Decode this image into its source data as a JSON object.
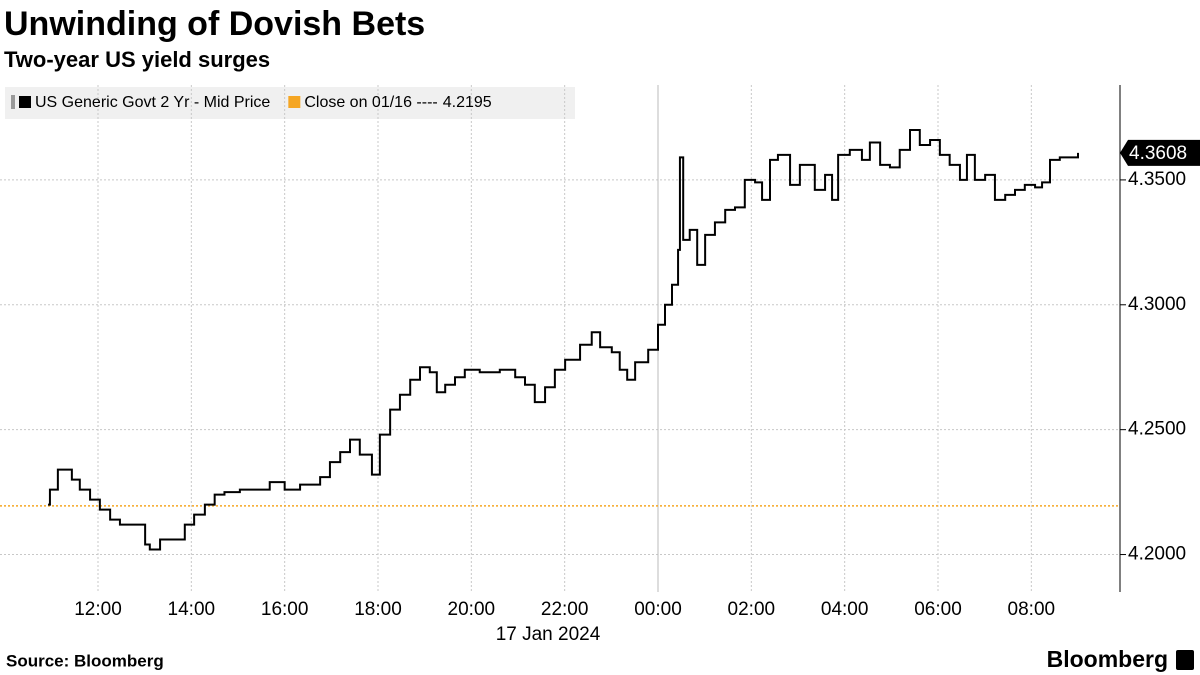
{
  "chart_data": {
    "type": "line",
    "title": "Unwinding of Dovish Bets",
    "subtitle": "Two-year US yield surges",
    "source": "Source: Bloomberg",
    "brand": "Bloomberg",
    "date_label": {
      "text": "17 Jan 2024",
      "x": 24
    },
    "x": [
      10.93,
      10.97,
      11.14,
      11.29,
      11.44,
      11.61,
      11.83,
      12.04,
      12.26,
      12.47,
      12.79,
      13.01,
      13.11,
      13.33,
      13.65,
      13.86,
      14.06,
      14.29,
      14.5,
      14.71,
      15.04,
      15.47,
      15.68,
      16.0,
      16.33,
      16.76,
      16.97,
      17.19,
      17.4,
      17.61,
      17.87,
      18.04,
      18.26,
      18.47,
      18.69,
      18.9,
      19.11,
      19.26,
      19.44,
      19.65,
      19.86,
      20.18,
      20.61,
      20.94,
      21.15,
      21.36,
      21.58,
      21.79,
      22.01,
      22.33,
      22.58,
      22.76,
      23.01,
      23.18,
      23.34,
      23.51,
      23.79,
      24.0,
      24.15,
      24.3,
      24.43,
      24.47,
      24.54,
      24.68,
      24.84,
      25.01,
      25.22,
      25.44,
      25.65,
      25.86,
      26.08,
      26.23,
      26.4,
      26.57,
      26.83,
      27.04,
      27.36,
      27.58,
      27.73,
      27.86,
      28.11,
      28.37,
      28.54,
      28.76,
      28.97,
      29.18,
      29.4,
      29.61,
      29.83,
      30.04,
      30.25,
      30.47,
      30.62,
      30.79,
      31.01,
      31.22,
      31.44,
      31.65,
      31.86,
      32.08,
      32.23,
      32.4,
      32.61,
      32.83,
      33.0
    ],
    "series": [
      {
        "name": "US Generic Govt 2 Yr - Mid Price",
        "color": "#000000",
        "values": [
          4.22,
          4.226,
          4.234,
          4.234,
          4.23,
          4.226,
          4.222,
          4.218,
          4.214,
          4.212,
          4.212,
          4.204,
          4.202,
          4.206,
          4.206,
          4.212,
          4.216,
          4.22,
          4.224,
          4.225,
          4.226,
          4.226,
          4.229,
          4.226,
          4.228,
          4.231,
          4.237,
          4.241,
          4.246,
          4.24,
          4.232,
          4.248,
          4.258,
          4.264,
          4.27,
          4.275,
          4.273,
          4.265,
          4.268,
          4.271,
          4.274,
          4.273,
          4.274,
          4.271,
          4.268,
          4.261,
          4.267,
          4.274,
          4.278,
          4.284,
          4.289,
          4.283,
          4.281,
          4.274,
          4.27,
          4.277,
          4.282,
          4.292,
          4.3,
          4.308,
          4.322,
          4.359,
          4.326,
          4.33,
          4.316,
          4.328,
          4.333,
          4.338,
          4.339,
          4.35,
          4.349,
          4.342,
          4.358,
          4.36,
          4.348,
          4.356,
          4.346,
          4.352,
          4.342,
          4.36,
          4.362,
          4.358,
          4.365,
          4.356,
          4.355,
          4.362,
          4.37,
          4.364,
          4.366,
          4.36,
          4.356,
          4.35,
          4.36,
          4.35,
          4.352,
          4.342,
          4.344,
          4.346,
          4.348,
          4.347,
          4.349,
          4.358,
          4.359,
          4.359,
          4.3608
        ]
      }
    ],
    "reference_line": {
      "name": "Close on 01/16 ----",
      "value": 4.2195,
      "color": "#f5a623"
    },
    "xlim": [
      9.9,
      33.9
    ],
    "ylim": [
      4.185,
      4.388
    ],
    "xticks": [
      {
        "value": 12,
        "label": "12:00"
      },
      {
        "value": 14,
        "label": "14:00"
      },
      {
        "value": 16,
        "label": "16:00"
      },
      {
        "value": 18,
        "label": "18:00"
      },
      {
        "value": 20,
        "label": "20:00"
      },
      {
        "value": 22,
        "label": "22:00"
      },
      {
        "value": 24,
        "label": "00:00"
      },
      {
        "value": 26,
        "label": "02:00"
      },
      {
        "value": 28,
        "label": "04:00"
      },
      {
        "value": 30,
        "label": "06:00"
      },
      {
        "value": 32,
        "label": "08:00"
      }
    ],
    "yticks": [
      {
        "value": 4.2,
        "label": "4.2000"
      },
      {
        "value": 4.25,
        "label": "4.2500"
      },
      {
        "value": 4.3,
        "label": "4.3000"
      },
      {
        "value": 4.35,
        "label": "4.3500"
      }
    ],
    "grid": true
  }
}
